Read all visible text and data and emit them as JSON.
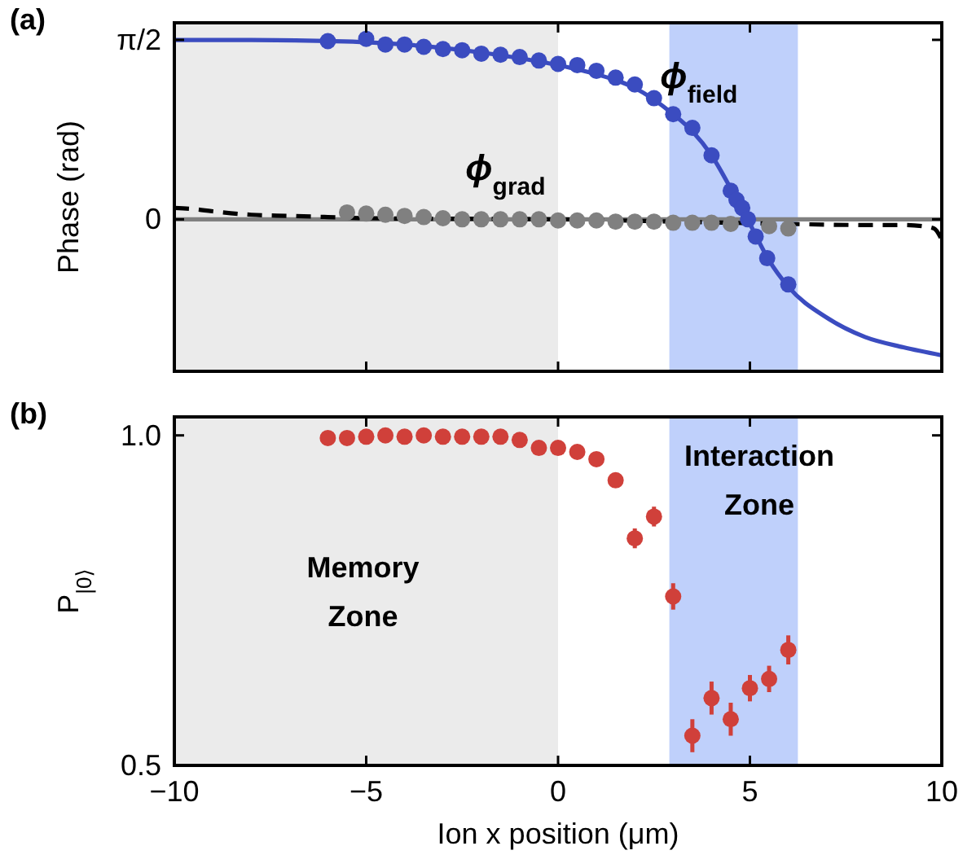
{
  "chart_data": [
    {
      "type": "scatter",
      "annotations": [
        "(a)"
      ],
      "ylabel": "Phase (rad)",
      "xlim": [
        -10,
        10
      ],
      "xticks": [
        -10,
        -5,
        0,
        5,
        10
      ],
      "ylim": [
        -1.33,
        1.72
      ],
      "yticks": [
        {
          "value": 1.5708,
          "label": "π/2"
        },
        0
      ],
      "tick_labels": "y",
      "bands": [
        {
          "axis": "x",
          "from": -10,
          "to": 0,
          "color": "#ebebeb"
        },
        {
          "axis": "x",
          "from": 2.9,
          "to": 6.25,
          "color": "#bfd0fb"
        }
      ],
      "series": [
        {
          "type": "line",
          "color": "#808080",
          "x": [
            -10,
            10
          ],
          "values": [
            0,
            0
          ]
        },
        {
          "type": "line",
          "color": "#000000",
          "line_style": "dashed",
          "x": [
            -10,
            -9.5,
            -9,
            -8,
            -7,
            -6,
            -5,
            0,
            3,
            6,
            8,
            9,
            9.5,
            9.8,
            10
          ],
          "values": [
            0.1,
            0.09,
            0.07,
            0.04,
            0.03,
            0.02,
            0.01,
            0,
            -0.02,
            -0.04,
            -0.05,
            -0.05,
            -0.06,
            -0.08,
            -0.18
          ]
        },
        {
          "name": "ϕ$_{grad}$",
          "color": "#808080",
          "x": [
            -5.5,
            -5,
            -4.5,
            -4,
            -3.5,
            -3,
            -2.5,
            -2,
            -1.5,
            -1,
            -0.5,
            0,
            0.5,
            1,
            1.5,
            2,
            2.5,
            3,
            3.5,
            4,
            4.5,
            5.5,
            6
          ],
          "values": [
            0.06,
            0.05,
            0.04,
            0.03,
            0.02,
            0.01,
            0,
            0,
            0,
            0,
            0,
            -0.01,
            -0.01,
            -0.01,
            -0.02,
            -0.02,
            -0.02,
            -0.03,
            -0.03,
            -0.03,
            -0.04,
            -0.06,
            -0.08
          ]
        },
        {
          "type": "line",
          "color": "#3b4cc0",
          "x": [
            -10,
            -8,
            -6,
            -5,
            -4,
            -3,
            -2,
            -1,
            0,
            1,
            2,
            3,
            3.5,
            4,
            4.5,
            5,
            5.5,
            6,
            7,
            8,
            9,
            10
          ],
          "values": [
            1.57,
            1.57,
            1.56,
            1.55,
            1.53,
            1.5,
            1.46,
            1.41,
            1.35,
            1.27,
            1.15,
            0.92,
            0.77,
            0.56,
            0.27,
            -0.04,
            -0.36,
            -0.59,
            -0.86,
            -1.03,
            -1.12,
            -1.19
          ]
        },
        {
          "name": "ϕ$_{field}$",
          "color": "#3b4cc0",
          "x": [
            -6,
            -5,
            -4.5,
            -4,
            -3.5,
            -3,
            -2.5,
            -2,
            -1.5,
            -1,
            -0.5,
            0,
            0.5,
            1,
            1.5,
            2,
            2.5,
            3,
            3.5,
            4,
            4.5,
            4.65,
            4.8,
            4.95,
            5.15,
            5.45,
            6
          ],
          "values": [
            1.56,
            1.58,
            1.53,
            1.53,
            1.51,
            1.49,
            1.48,
            1.45,
            1.44,
            1.42,
            1.39,
            1.36,
            1.35,
            1.3,
            1.24,
            1.18,
            1.06,
            0.92,
            0.8,
            0.56,
            0.25,
            0.17,
            0.1,
            0.0,
            -0.15,
            -0.34,
            -0.57
          ]
        }
      ]
    },
    {
      "type": "scatter",
      "annotations": [
        "(b)"
      ],
      "xlabel": "Ion x position (μm)",
      "ylabel": "P$_{|0⟩}$",
      "xlim": [
        -10,
        10
      ],
      "xticks": [
        {
          "value": -10,
          "label": "−10"
        },
        {
          "value": -5,
          "label": "−5"
        },
        0,
        5,
        10
      ],
      "ylim": [
        0.5,
        1.028
      ],
      "yticks": [
        {
          "value": 1,
          "label": "1.0"
        },
        0.5
      ],
      "bands": [
        {
          "axis": "x",
          "from": -10,
          "to": 0,
          "color": "#ebebeb",
          "label": "Memory Zone"
        },
        {
          "axis": "x",
          "from": 2.9,
          "to": 6.25,
          "color": "#bfd0fb",
          "label": "Interaction Zone"
        }
      ],
      "series": [
        {
          "color": "#d0403a",
          "x": [
            -6,
            -5.5,
            -5,
            -4.5,
            -4,
            -3.5,
            -3,
            -2.5,
            -2,
            -1.5,
            -1,
            -0.5,
            0,
            0.5,
            1,
            1.5,
            2,
            2.5,
            3,
            3.5,
            4,
            4.5,
            5,
            5.5,
            6
          ],
          "values": [
            0.996,
            0.996,
            0.998,
            1.0,
            0.998,
            1.0,
            0.998,
            0.998,
            0.998,
            0.998,
            0.993,
            0.981,
            0.981,
            0.975,
            0.964,
            0.932,
            0.844,
            0.877,
            0.756,
            0.545,
            0.602,
            0.57,
            0.617,
            0.631,
            0.675
          ],
          "errors": [
            null,
            null,
            null,
            null,
            null,
            null,
            null,
            null,
            null,
            null,
            null,
            null,
            null,
            null,
            null,
            null,
            0.015,
            0.015,
            0.02,
            0.025,
            0.025,
            0.025,
            0.02,
            0.02,
            0.022
          ]
        }
      ]
    }
  ]
}
